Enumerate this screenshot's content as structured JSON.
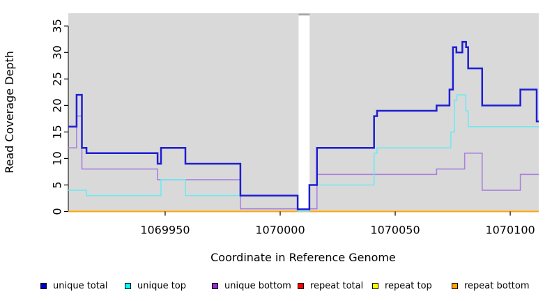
{
  "figure": {
    "background": "#ffffff",
    "panel_background": "#d9d9d9"
  },
  "chart_data": {
    "type": "line",
    "subtype": "step-coverage",
    "title": "",
    "xlabel": "Coordinate in Reference Genome",
    "ylabel": "Read Coverage Depth",
    "xlim": [
      1069907.9,
      1070112.4
    ],
    "ylim": [
      0,
      37.4
    ],
    "x_ticks": [
      1069950,
      1070000,
      1070050,
      1070100
    ],
    "x_tick_labels": [
      "1069950",
      "1070000",
      "1070050",
      "1070100"
    ],
    "y_ticks": [
      0,
      5,
      10,
      15,
      20,
      25,
      30,
      35
    ],
    "y_tick_labels": [
      "0",
      "5",
      "10",
      "15",
      "20",
      "25",
      "30",
      "35"
    ],
    "grid": false,
    "legend_position": "bottom",
    "gap_region": {
      "x0": 1070008.0,
      "x1": 1070012.8,
      "fill": "#ffffff",
      "top_edge_color": "#a8a8a8"
    },
    "series": [
      {
        "name": "repeat total",
        "color": "#ff0000",
        "width": 1.5,
        "points": [
          [
            1069907.9,
            0
          ],
          [
            1070112.4,
            0
          ]
        ]
      },
      {
        "name": "repeat top",
        "color": "#ffff00",
        "width": 1.5,
        "points": [
          [
            1069907.9,
            0
          ],
          [
            1070112.4,
            0
          ]
        ]
      },
      {
        "name": "repeat bottom",
        "color": "#ffa500",
        "width": 1.9,
        "points": [
          [
            1069907.9,
            0
          ],
          [
            1070112.4,
            0
          ]
        ]
      },
      {
        "name": "unique bottom",
        "color": "#a982dc",
        "width": 1.6,
        "points": [
          [
            1069907.9,
            12
          ],
          [
            1069911.5,
            18
          ],
          [
            1069913.8,
            8
          ],
          [
            1069946.7,
            6
          ],
          [
            1069982.7,
            0.5
          ],
          [
            1070016,
            7
          ],
          [
            1070068,
            8
          ],
          [
            1070080.2,
            11
          ],
          [
            1070087.8,
            4
          ],
          [
            1070104.4,
            7
          ]
        ]
      },
      {
        "name": "unique top",
        "color": "#70e9ee",
        "width": 1.6,
        "points": [
          [
            1069907.9,
            4
          ],
          [
            1069915.8,
            3
          ],
          [
            1069948.2,
            6
          ],
          [
            1069958.8,
            3
          ],
          [
            1070007.6,
            0
          ],
          [
            1070012.7,
            5
          ],
          [
            1070040.8,
            11
          ],
          [
            1070042.1,
            12
          ],
          [
            1070074.2,
            15
          ],
          [
            1070075.7,
            21
          ],
          [
            1070076.8,
            22
          ],
          [
            1070080.7,
            19
          ],
          [
            1070081.7,
            16
          ]
        ]
      },
      {
        "name": "unique total",
        "color": "#1e1ed2",
        "width": 2.5,
        "points": [
          [
            1069907.9,
            16
          ],
          [
            1069911.5,
            22
          ],
          [
            1069913.8,
            12
          ],
          [
            1069915.8,
            11
          ],
          [
            1069946.7,
            9
          ],
          [
            1069948.2,
            12
          ],
          [
            1069958.8,
            9
          ],
          [
            1069982.7,
            3
          ],
          [
            1070007.6,
            0.4
          ],
          [
            1070012.7,
            5
          ],
          [
            1070016,
            12
          ],
          [
            1070040.8,
            18
          ],
          [
            1070042.1,
            19
          ],
          [
            1070068,
            20
          ],
          [
            1070073.6,
            23
          ],
          [
            1070075.1,
            31
          ],
          [
            1070076.6,
            30
          ],
          [
            1070079.2,
            32
          ],
          [
            1070080.8,
            31
          ],
          [
            1070081.7,
            27
          ],
          [
            1070087.8,
            20
          ],
          [
            1070104.4,
            23
          ],
          [
            1070111.5,
            17
          ]
        ]
      }
    ],
    "legend": [
      {
        "label": "unique total",
        "color": "#0000cd"
      },
      {
        "label": "unique top",
        "color": "#00ffff"
      },
      {
        "label": "unique bottom",
        "color": "#9932cc"
      },
      {
        "label": "repeat total",
        "color": "#ff0000"
      },
      {
        "label": "repeat top",
        "color": "#ffff00"
      },
      {
        "label": "repeat bottom",
        "color": "#ffa500"
      }
    ]
  }
}
